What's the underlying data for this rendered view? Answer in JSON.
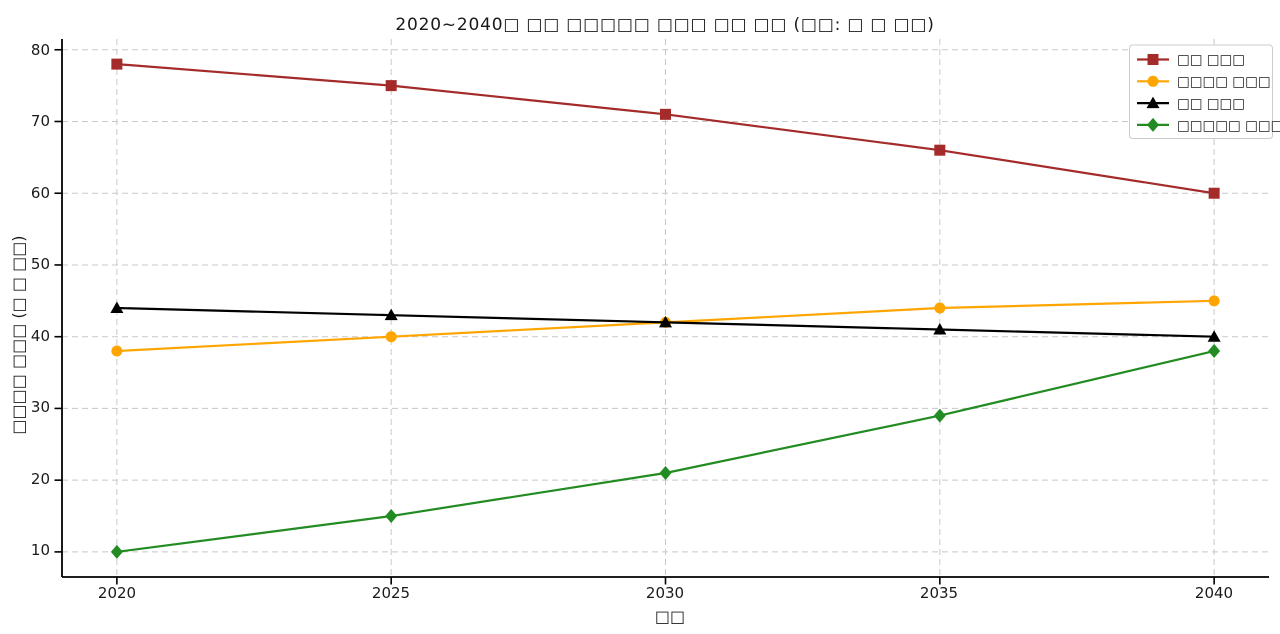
{
  "chart_data": {
    "type": "line",
    "title": "2020~2040□ □□ □□□□□ □□□ □□ □□ (□□: □ □ □□)",
    "xlabel": "□□",
    "ylabel": "□□□□ □□□ (□ □ □□)",
    "x": [
      2020,
      2025,
      2030,
      2035,
      2040
    ],
    "xtick_labels": [
      "2020",
      "2025",
      "2030",
      "2035",
      "2040"
    ],
    "yticks": [
      10,
      20,
      30,
      40,
      50,
      60,
      70,
      80
    ],
    "ytick_labels": [
      "10",
      "20",
      "30",
      "40",
      "50",
      "60",
      "70",
      "80"
    ],
    "xlim": [
      2019,
      2041
    ],
    "ylim": [
      6.5,
      81.5
    ],
    "grid": true,
    "grid_style": "dashed",
    "legend_position": "upper right",
    "series": [
      {
        "name": "□□ □□□",
        "color": "#A52A2A",
        "marker": "square",
        "values": [
          78,
          75,
          71,
          66,
          60
        ]
      },
      {
        "name": "□□□□ □□□",
        "color": "#FFA500",
        "marker": "circle",
        "values": [
          38,
          40,
          42,
          44,
          45
        ]
      },
      {
        "name": "□□ □□□",
        "color": "#000000",
        "marker": "triangle-up",
        "values": [
          44,
          43,
          42,
          41,
          40
        ]
      },
      {
        "name": "□□□□□ □□□",
        "color": "#228B22",
        "marker": "diamond",
        "values": [
          10,
          15,
          21,
          29,
          38
        ]
      }
    ]
  }
}
